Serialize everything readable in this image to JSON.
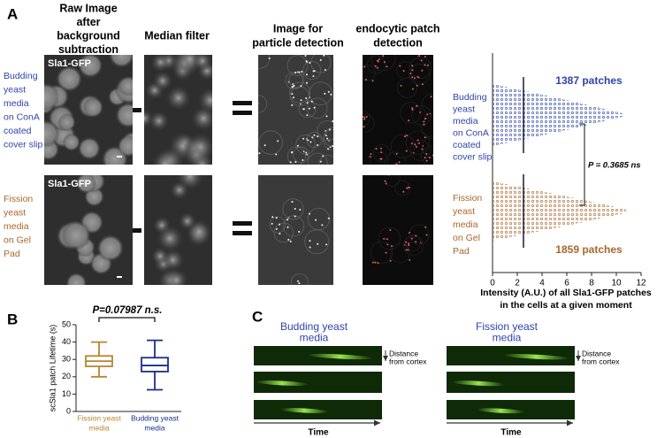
{
  "figure": {
    "panel_labels": [
      "A",
      "B",
      "C"
    ],
    "column_headers": [
      [
        "Raw Image",
        "after",
        "background",
        "subtraction"
      ],
      [
        "Median filter"
      ],
      [
        "Image for",
        "particle detection"
      ],
      [
        "endocytic patch",
        "detection"
      ]
    ],
    "image_label": "Sla1-GFP",
    "row_labels": [
      [
        "Budding",
        "yeast",
        "media",
        "on ConA",
        "coated",
        "cover slip"
      ],
      [
        "Fission",
        "yeast",
        "media",
        "on Gel",
        "Pad"
      ]
    ],
    "kymograph": {
      "headings": [
        [
          "Budding yeast",
          "media"
        ],
        [
          "Fission yeast",
          "media"
        ]
      ],
      "distance_label": [
        "Distance",
        "from cortex"
      ],
      "time_label": "Time"
    }
  },
  "chart_data": [
    {
      "type": "strip",
      "xlabel": [
        "Intensity (A.U.) of all Sla1-GFP patches",
        "in the cells at a given moment"
      ],
      "xlim": [
        0,
        12
      ],
      "xticks": [
        0,
        2,
        4,
        6,
        8,
        10,
        12
      ],
      "series": [
        {
          "name": [
            "Budding",
            "yeast",
            "media",
            "on ConA",
            "coated",
            "cover slip"
          ],
          "color": "#2f44a8",
          "median": 2.5,
          "max": 10.5,
          "label": "1387 patches"
        },
        {
          "name": [
            "Fission",
            "yeast",
            "media",
            "on Gel",
            "Pad"
          ],
          "color": "#a8672a",
          "median": 2.5,
          "max": 10.8,
          "label": "1859 patches"
        }
      ],
      "annotation": "P = 0.3685 ns"
    },
    {
      "type": "box",
      "ylabel": "scSla1 patch Lifetime (s)",
      "ylim": [
        0,
        50
      ],
      "yticks": [
        0,
        10,
        20,
        30,
        40,
        50
      ],
      "categories": [
        [
          "Fission yeast",
          "media"
        ],
        [
          "Budding yeast",
          "media"
        ]
      ],
      "series": [
        {
          "color": "#b8862e",
          "whisker_low": 20,
          "q1": 26,
          "median": 29,
          "q3": 32,
          "whisker_high": 40
        },
        {
          "color": "#1a2e8c",
          "whisker_low": 12.5,
          "q1": 23,
          "median": 26.5,
          "q3": 31,
          "whisker_high": 41
        }
      ],
      "annotation": "P=0.07987 n.s."
    }
  ]
}
